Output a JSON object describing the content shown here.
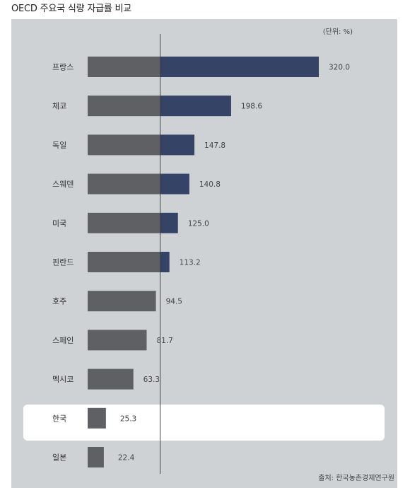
{
  "title": "OECD 주요국 식량 자급률 비교",
  "unit_label": "(단위: %)",
  "source": "출처: 한국농촌경제연구원",
  "colors": {
    "panel_bg": "#ced2d5",
    "bar_gray": "#5f6064",
    "bar_blue": "#354466",
    "highlight_row": "#ffffff",
    "center_line": "#444444"
  },
  "highlight_category": "한국",
  "chart_data": {
    "type": "bar",
    "orientation": "horizontal",
    "baseline": 100,
    "categories": [
      "프랑스",
      "체코",
      "독일",
      "스웨덴",
      "미국",
      "핀란드",
      "호주",
      "스페인",
      "멕시코",
      "한국",
      "일본"
    ],
    "values": [
      320.0,
      198.6,
      147.8,
      140.8,
      125.0,
      113.2,
      94.5,
      81.7,
      63.3,
      25.3,
      22.4
    ],
    "value_labels": [
      "320.0",
      "198.6",
      "147.8",
      "140.8",
      "125.0",
      "113.2",
      "94.5",
      "81.7",
      "63.3",
      "25.3",
      "22.4"
    ],
    "xlim": [
      0,
      320
    ],
    "note": ""
  }
}
